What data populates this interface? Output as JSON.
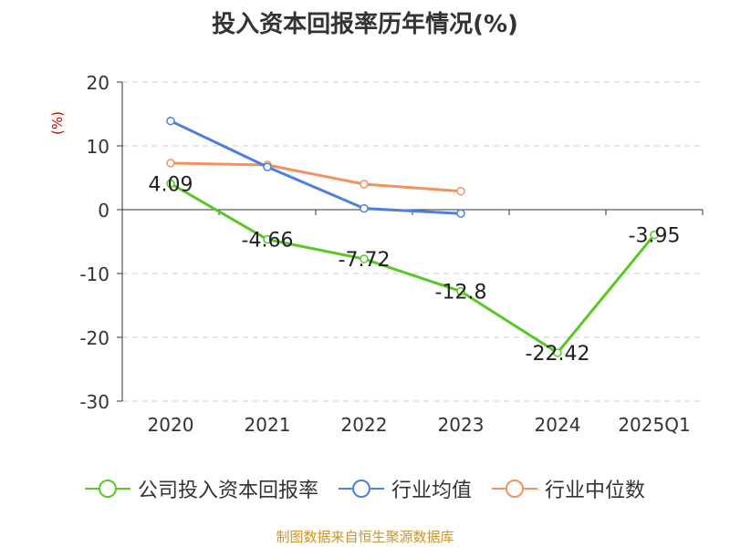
{
  "chart_data": {
    "type": "line",
    "title": "投入资本回报率历年情况(%)",
    "ylabel": "(%)",
    "categories": [
      "2020",
      "2021",
      "2022",
      "2023",
      "2024",
      "2025Q1"
    ],
    "ylim": [
      -30,
      20
    ],
    "yticks": [
      20,
      10,
      0,
      -10,
      -20,
      -30
    ],
    "grid": true,
    "legend_position": "bottom",
    "series": [
      {
        "name": "公司投入资本回报率",
        "color": "#5ac725",
        "values": [
          4.09,
          -4.66,
          -7.72,
          -12.8,
          -22.42,
          -3.95
        ],
        "labels": [
          "4.09",
          "-4.66",
          "-7.72",
          "-12.8",
          "-22.42",
          "-3.95"
        ]
      },
      {
        "name": "行业均值",
        "color": "#4f7fd9",
        "values": [
          13.9,
          6.7,
          0.2,
          -0.6,
          null,
          null
        ]
      },
      {
        "name": "行业中位数",
        "color": "#f4915f",
        "values": [
          7.3,
          7.0,
          4.0,
          2.9,
          null,
          null
        ]
      }
    ]
  },
  "source": "制图数据来自恒生聚源数据库"
}
